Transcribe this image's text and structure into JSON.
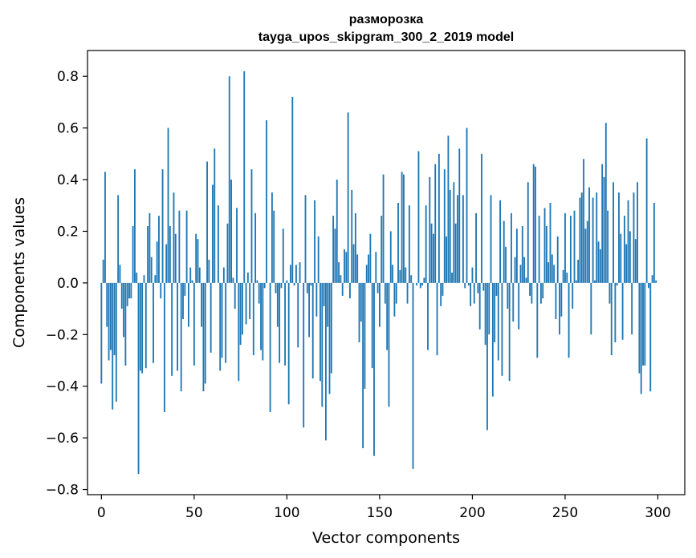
{
  "chart_data": {
    "type": "bar",
    "title": "размoрoзка",
    "subtitle": "tayga_upos_skipgram_300_2_2019 model",
    "xlabel": "Vector components",
    "ylabel": "Components values",
    "xlim": [
      -7.5,
      314.5
    ],
    "ylim": [
      -0.82,
      0.9
    ],
    "xticks": [
      0,
      50,
      100,
      150,
      200,
      250,
      300
    ],
    "xtick_labels": [
      "0",
      "50",
      "100",
      "150",
      "200",
      "250",
      "300"
    ],
    "yticks": [
      -0.8,
      -0.6,
      -0.4,
      -0.2,
      0.0,
      0.2,
      0.4,
      0.6,
      0.8
    ],
    "ytick_labels": [
      "−0.8",
      "−0.6",
      "−0.4",
      "−0.2",
      "0.0",
      "0.2",
      "0.4",
      "0.6",
      "0.8"
    ],
    "grid": false,
    "color": "#1f77b4",
    "x": [
      0,
      1,
      2,
      3,
      4,
      5,
      6,
      7,
      8,
      9,
      10,
      11,
      12,
      13,
      14,
      15,
      16,
      17,
      18,
      19,
      20,
      21,
      22,
      23,
      24,
      25,
      26,
      27,
      28,
      29,
      30,
      31,
      32,
      33,
      34,
      35,
      36,
      37,
      38,
      39,
      40,
      41,
      42,
      43,
      44,
      45,
      46,
      47,
      48,
      49,
      50,
      51,
      52,
      53,
      54,
      55,
      56,
      57,
      58,
      59,
      60,
      61,
      62,
      63,
      64,
      65,
      66,
      67,
      68,
      69,
      70,
      71,
      72,
      73,
      74,
      75,
      76,
      77,
      78,
      79,
      80,
      81,
      82,
      83,
      84,
      85,
      86,
      87,
      88,
      89,
      90,
      91,
      92,
      93,
      94,
      95,
      96,
      97,
      98,
      99,
      100,
      101,
      102,
      103,
      104,
      105,
      106,
      107,
      108,
      109,
      110,
      111,
      112,
      113,
      114,
      115,
      116,
      117,
      118,
      119,
      120,
      121,
      122,
      123,
      124,
      125,
      126,
      127,
      128,
      129,
      130,
      131,
      132,
      133,
      134,
      135,
      136,
      137,
      138,
      139,
      140,
      141,
      142,
      143,
      144,
      145,
      146,
      147,
      148,
      149,
      150,
      151,
      152,
      153,
      154,
      155,
      156,
      157,
      158,
      159,
      160,
      161,
      162,
      163,
      164,
      165,
      166,
      167,
      168,
      169,
      170,
      171,
      172,
      173,
      174,
      175,
      176,
      177,
      178,
      179,
      180,
      181,
      182,
      183,
      184,
      185,
      186,
      187,
      188,
      189,
      190,
      191,
      192,
      193,
      194,
      195,
      196,
      197,
      198,
      199,
      200,
      201,
      202,
      203,
      204,
      205,
      206,
      207,
      208,
      209,
      210,
      211,
      212,
      213,
      214,
      215,
      216,
      217,
      218,
      219,
      220,
      221,
      222,
      223,
      224,
      225,
      226,
      227,
      228,
      229,
      230,
      231,
      232,
      233,
      234,
      235,
      236,
      237,
      238,
      239,
      240,
      241,
      242,
      243,
      244,
      245,
      246,
      247,
      248,
      249,
      250,
      251,
      252,
      253,
      254,
      255,
      256,
      257,
      258,
      259,
      260,
      261,
      262,
      263,
      264,
      265,
      266,
      267,
      268,
      269,
      270,
      271,
      272,
      273,
      274,
      275,
      276,
      277,
      278,
      279,
      280,
      281,
      282,
      283,
      284,
      285,
      286,
      287,
      288,
      289,
      290,
      291,
      292,
      293,
      294,
      295,
      296,
      297,
      298,
      299
    ],
    "values": [
      -0.39,
      0.09,
      0.43,
      -0.17,
      -0.3,
      -0.26,
      -0.49,
      -0.28,
      -0.46,
      0.34,
      0.07,
      -0.1,
      -0.21,
      -0.32,
      -0.09,
      -0.06,
      -0.06,
      0.22,
      0.44,
      0.04,
      -0.74,
      -0.34,
      -0.35,
      0.03,
      -0.33,
      0.22,
      0.27,
      0.1,
      -0.31,
      0.03,
      0.16,
      0.26,
      -0.06,
      0.44,
      -0.5,
      0.15,
      0.6,
      0.22,
      -0.36,
      0.35,
      0.19,
      -0.34,
      0.28,
      -0.42,
      -0.14,
      -0.05,
      0.28,
      -0.17,
      0.06,
      0.01,
      -0.32,
      0.19,
      0.17,
      0.06,
      -0.17,
      -0.42,
      -0.39,
      0.47,
      0.09,
      -0.27,
      0.38,
      0.52,
      0.0,
      0.3,
      -0.34,
      -0.29,
      0.06,
      -0.31,
      0.23,
      0.8,
      0.4,
      0.02,
      -0.1,
      0.29,
      -0.38,
      -0.24,
      -0.2,
      0.82,
      -0.16,
      0.04,
      -0.14,
      0.44,
      -0.28,
      0.27,
      0.01,
      -0.08,
      -0.26,
      -0.3,
      -0.02,
      0.63,
      0.0,
      -0.5,
      0.35,
      0.28,
      -0.04,
      -0.17,
      -0.31,
      -0.02,
      0.21,
      -0.32,
      0.01,
      -0.47,
      0.07,
      0.72,
      -0.01,
      0.07,
      -0.25,
      0.08,
      0.0,
      -0.56,
      0.34,
      -0.04,
      -0.21,
      -0.01,
      -0.37,
      0.32,
      -0.13,
      0.18,
      -0.38,
      -0.48,
      -0.09,
      -0.61,
      -0.17,
      -0.43,
      -0.35,
      0.26,
      0.21,
      0.4,
      0.08,
      0.03,
      -0.05,
      0.13,
      0.12,
      0.66,
      -0.06,
      0.36,
      0.15,
      0.27,
      0.11,
      -0.23,
      -0.15,
      -0.64,
      -0.41,
      0.07,
      0.11,
      0.19,
      -0.33,
      -0.67,
      0.12,
      -0.04,
      -0.17,
      0.26,
      0.42,
      -0.08,
      -0.26,
      -0.48,
      0.2,
      0.07,
      -0.13,
      -0.08,
      0.31,
      0.05,
      0.43,
      0.42,
      0.06,
      -0.08,
      0.3,
      0.03,
      -0.72,
      0.0,
      -0.01,
      0.51,
      -0.02,
      -0.01,
      0.02,
      0.3,
      -0.26,
      0.41,
      0.23,
      0.19,
      0.46,
      -0.28,
      0.5,
      -0.09,
      -0.05,
      0.44,
      0.18,
      0.57,
      0.36,
      0.04,
      0.39,
      0.23,
      0.34,
      0.52,
      0.0,
      0.34,
      -0.02,
      0.6,
      -0.01,
      -0.09,
      0.06,
      -0.08,
      0.27,
      -0.04,
      -0.18,
      0.5,
      -0.03,
      -0.24,
      -0.57,
      -0.2,
      0.34,
      -0.44,
      -0.23,
      -0.05,
      -0.3,
      0.32,
      -0.36,
      0.24,
      0.14,
      -0.1,
      -0.38,
      0.27,
      -0.15,
      0.1,
      0.21,
      -0.18,
      0.07,
      0.22,
      0.1,
      0.02,
      0.39,
      -0.05,
      -0.08,
      0.46,
      0.45,
      -0.29,
      0.26,
      -0.08,
      -0.06,
      0.29,
      0.22,
      0.08,
      0.31,
      0.11,
      0.07,
      -0.14,
      0.18,
      -0.2,
      -0.13,
      0.05,
      0.27,
      0.04,
      -0.29,
      0.26,
      -0.1,
      0.28,
      0.01,
      0.09,
      0.33,
      0.35,
      0.48,
      0.21,
      0.24,
      0.37,
      -0.2,
      0.33,
      0.01,
      0.35,
      0.16,
      0.13,
      0.46,
      0.41,
      0.62,
      0.28,
      -0.08,
      -0.28,
      0.39,
      -0.23,
      -0.01,
      0.35,
      0.19,
      -0.22,
      0.26,
      0.15,
      0.32,
      0.2,
      -0.2,
      0.35,
      0.17,
      0.39,
      -0.35,
      -0.43,
      -0.32,
      -0.32,
      0.56,
      -0.02,
      -0.42,
      0.03,
      0.31,
      0.01
    ]
  }
}
